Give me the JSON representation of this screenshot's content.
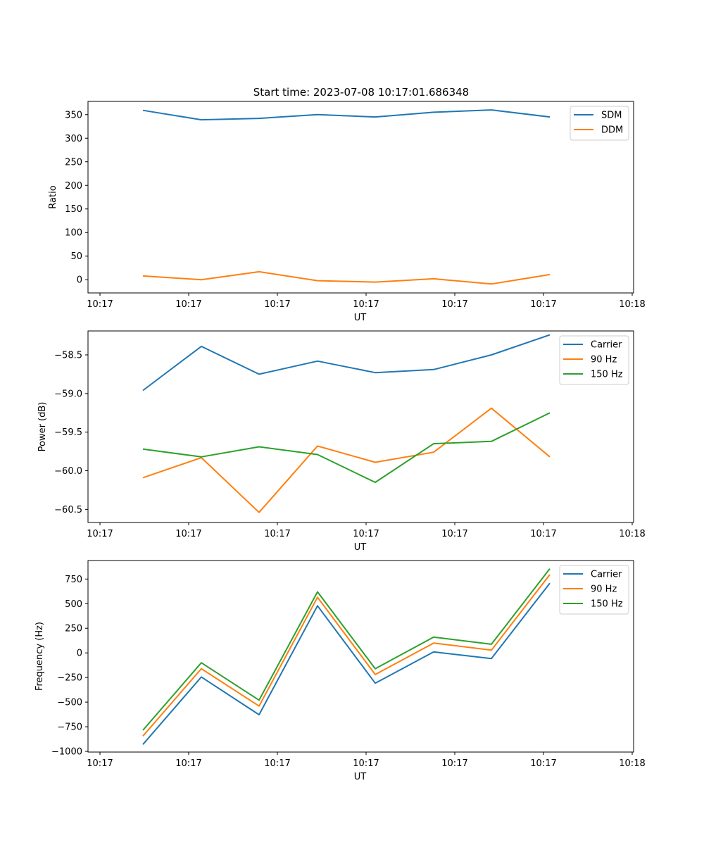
{
  "figure_title": "Start time: 2023-07-08 10:17:01.686348",
  "colors": {
    "blue": "#1f77b4",
    "orange": "#ff7f0e",
    "green": "#2ca02c"
  },
  "chart_data": [
    {
      "type": "line",
      "title": "Start time: 2023-07-08 10:17:01.686348",
      "xlabel": "UT",
      "ylabel": "Ratio",
      "x_ticks": [
        "10:17",
        "10:17",
        "10:17",
        "10:17",
        "10:17",
        "10:17",
        "10:18"
      ],
      "y_ticks": [
        0,
        50,
        100,
        150,
        200,
        250,
        300,
        350
      ],
      "ylim": [
        -28,
        378
      ],
      "legend_position": "top-right",
      "series": [
        {
          "name": "SDM",
          "color": "#1f77b4",
          "values": [
            359,
            339,
            342,
            350,
            345,
            355,
            360,
            345
          ]
        },
        {
          "name": "DDM",
          "color": "#ff7f0e",
          "values": [
            8,
            0,
            17,
            -2,
            -5,
            2,
            -9,
            11
          ]
        }
      ]
    },
    {
      "type": "line",
      "title": "",
      "xlabel": "UT",
      "ylabel": "Power (dB)",
      "x_ticks": [
        "10:17",
        "10:17",
        "10:17",
        "10:17",
        "10:17",
        "10:17",
        "10:18"
      ],
      "y_ticks": [
        -60.5,
        -60.0,
        -59.5,
        -59.0,
        -58.5
      ],
      "y_tick_labels": [
        "−60.5",
        "−60.0",
        "−59.5",
        "−59.0",
        "−58.5"
      ],
      "ylim": [
        -60.67,
        -58.19
      ],
      "legend_position": "top-right",
      "series": [
        {
          "name": "Carrier",
          "color": "#1f77b4",
          "values": [
            -58.96,
            -58.39,
            -58.75,
            -58.58,
            -58.73,
            -58.69,
            -58.5,
            -58.24
          ]
        },
        {
          "name": "90 Hz",
          "color": "#ff7f0e",
          "values": [
            -60.09,
            -59.83,
            -60.54,
            -59.68,
            -59.89,
            -59.76,
            -59.19,
            -59.82
          ]
        },
        {
          "name": "150 Hz",
          "color": "#2ca02c",
          "values": [
            -59.72,
            -59.82,
            -59.69,
            -59.79,
            -60.15,
            -59.65,
            -59.62,
            -59.25
          ]
        }
      ]
    },
    {
      "type": "line",
      "title": "",
      "xlabel": "UT",
      "ylabel": "Frequency (Hz)",
      "x_ticks": [
        "10:17",
        "10:17",
        "10:17",
        "10:17",
        "10:17",
        "10:17",
        "10:18"
      ],
      "y_ticks": [
        -1000,
        -750,
        -500,
        -250,
        0,
        250,
        500,
        750
      ],
      "y_tick_labels": [
        "−1000",
        "−750",
        "−500",
        "−250",
        "0",
        "250",
        "500",
        "750"
      ],
      "ylim": [
        -1007,
        938
      ],
      "legend_position": "top-right",
      "series": [
        {
          "name": "Carrier",
          "color": "#1f77b4",
          "values": [
            -930,
            -245,
            -628,
            478,
            -308,
            10,
            -58,
            708
          ]
        },
        {
          "name": "90 Hz",
          "color": "#ff7f0e",
          "values": [
            -845,
            -160,
            -540,
            565,
            -220,
            100,
            28,
            795
          ]
        },
        {
          "name": "150 Hz",
          "color": "#2ca02c",
          "values": [
            -785,
            -100,
            -480,
            620,
            -160,
            160,
            88,
            855
          ]
        }
      ]
    }
  ]
}
